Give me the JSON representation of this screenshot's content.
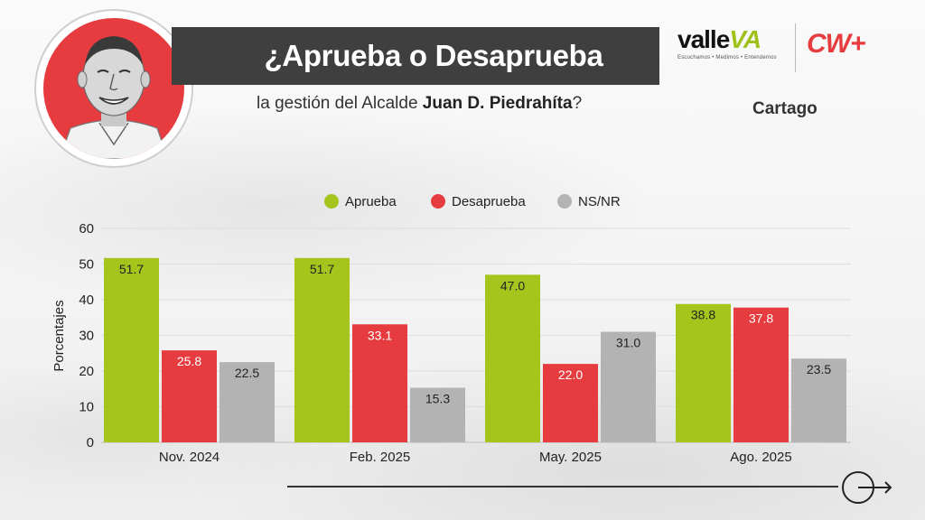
{
  "header": {
    "title": "¿Aprueba o Desaprueba",
    "subtitle_prefix": "la gestión del Alcalde ",
    "subtitle_name": "Juan D. Piedrahíta",
    "subtitle_suffix": "?",
    "city": "Cartago"
  },
  "logos": {
    "valle_word": "valle",
    "valle_va": "VA",
    "valle_tagline": "Escuchamos • Medimos • Entendemos",
    "cw_word": "CW+"
  },
  "colors": {
    "aprueba": "#a5c51c",
    "desaprueba": "#e63c3f",
    "nsnr": "#b3b3b3",
    "title_bar": "#3f3f3f"
  },
  "chart_data": {
    "type": "bar",
    "categories": [
      "Nov. 2024",
      "Feb. 2025",
      "May. 2025",
      "Ago. 2025"
    ],
    "series": [
      {
        "name": "Aprueba",
        "values": [
          51.7,
          51.7,
          47.0,
          38.8
        ]
      },
      {
        "name": "Desaprueba",
        "values": [
          25.8,
          33.1,
          22.0,
          37.8
        ]
      },
      {
        "name": "NS/NR",
        "values": [
          22.5,
          15.3,
          31.0,
          23.5
        ]
      }
    ],
    "ylabel": "Porcentajes",
    "ylim": [
      0,
      60
    ],
    "yticks": [
      0,
      10,
      20,
      30,
      40,
      50,
      60
    ],
    "grid": true,
    "legend": "top-center"
  }
}
